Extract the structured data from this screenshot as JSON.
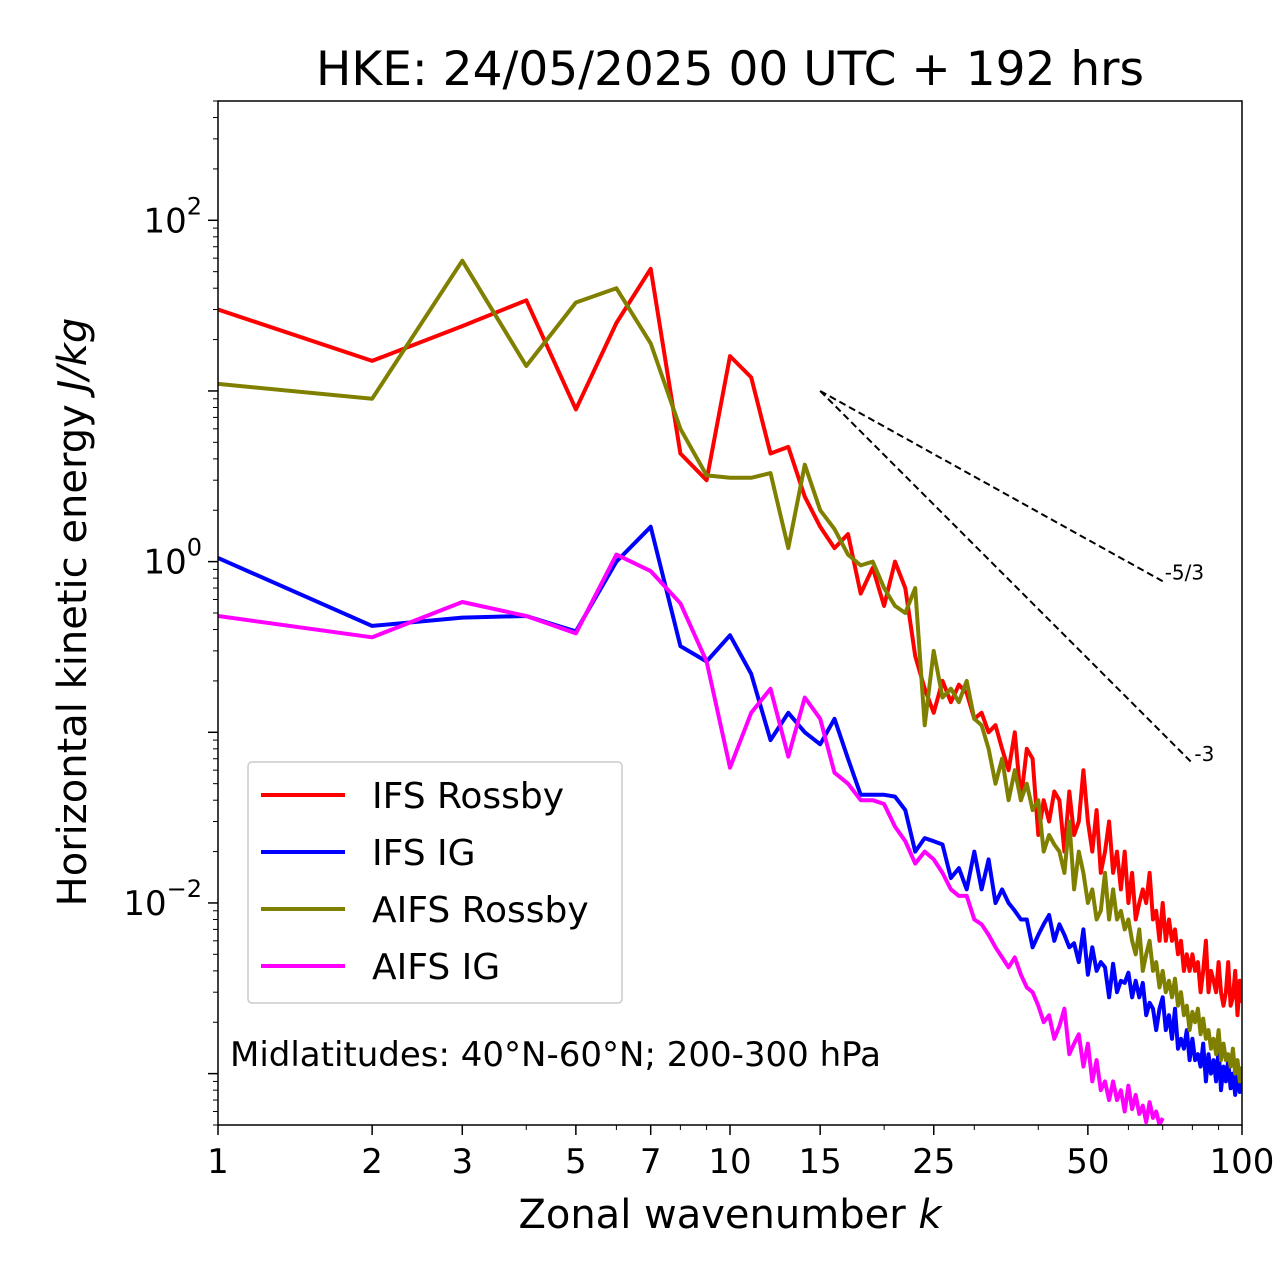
{
  "chart_data": {
    "type": "line",
    "title": "HKE: 24/05/2025 00 UTC + 192 hrs",
    "xlabel": "Zonal wavenumber",
    "xlabel_var": "k",
    "ylabel": "Horizontal kinetic energy",
    "ylabel_unit": "J/kg",
    "xscale": "log",
    "yscale": "log",
    "xlim": [
      1,
      100
    ],
    "ylim": [
      0.0005,
      500
    ],
    "xticks": [
      {
        "value": 1,
        "label": "1"
      },
      {
        "value": 2,
        "label": "2"
      },
      {
        "value": 3,
        "label": "3"
      },
      {
        "value": 5,
        "label": "5"
      },
      {
        "value": 7,
        "label": "7"
      },
      {
        "value": 10,
        "label": "10"
      },
      {
        "value": 15,
        "label": "15"
      },
      {
        "value": 25,
        "label": "25"
      },
      {
        "value": 50,
        "label": "50"
      },
      {
        "value": 100,
        "label": "100"
      }
    ],
    "yticks": [
      {
        "value": 100,
        "base": "10",
        "exp": "2"
      },
      {
        "value": 1,
        "base": "10",
        "exp": "0"
      },
      {
        "value": 0.01,
        "base": "10",
        "exp": "−2"
      }
    ],
    "legend_position": "lower-left",
    "annotation": "Midlatitudes: 40°N-60°N; 200-300 hPa",
    "reference_slopes": [
      {
        "label": "-5/3",
        "slope": -1.6667,
        "x": [
          15,
          70
        ],
        "y0": 10
      },
      {
        "label": "-3",
        "slope": -3,
        "x": [
          15,
          80
        ],
        "y0": 10
      }
    ],
    "series": [
      {
        "name": "IFS Rossby",
        "color": "#ff0000",
        "x": [
          1,
          2,
          3,
          4,
          5,
          6,
          7,
          8,
          9,
          10,
          11,
          12,
          13,
          14,
          15,
          16,
          17,
          18,
          19,
          20,
          21,
          22,
          23,
          24,
          25,
          26,
          27,
          28,
          29,
          30,
          31,
          32,
          33,
          34,
          35,
          36,
          37,
          38,
          39,
          40,
          41,
          42,
          43,
          44,
          45,
          46,
          47,
          48,
          49,
          50,
          51,
          52,
          53,
          54,
          55,
          56,
          57,
          58,
          59,
          60,
          61,
          62,
          63,
          64,
          65,
          66,
          67,
          68,
          69,
          70,
          71,
          72,
          73,
          74,
          75,
          76,
          77,
          78,
          79,
          80,
          81,
          82,
          83,
          84,
          85,
          86,
          87,
          88,
          89,
          90,
          91,
          92,
          93,
          94,
          95,
          96,
          97,
          98,
          99,
          100
        ],
        "y": [
          30,
          15,
          24,
          34,
          7.8,
          25,
          52,
          4.3,
          3,
          16,
          12,
          4.3,
          4.7,
          2.4,
          1.6,
          1.2,
          1.45,
          0.65,
          0.92,
          0.55,
          1.0,
          0.7,
          0.28,
          0.18,
          0.13,
          0.2,
          0.15,
          0.19,
          0.17,
          0.12,
          0.13,
          0.1,
          0.11,
          0.08,
          0.06,
          0.1,
          0.04,
          0.08,
          0.07,
          0.025,
          0.04,
          0.03,
          0.045,
          0.04,
          0.02,
          0.045,
          0.025,
          0.03,
          0.06,
          0.03,
          0.02,
          0.035,
          0.015,
          0.02,
          0.03,
          0.015,
          0.02,
          0.012,
          0.02,
          0.01,
          0.015,
          0.008,
          0.01,
          0.012,
          0.01,
          0.015,
          0.008,
          0.009,
          0.006,
          0.01,
          0.006,
          0.008,
          0.006,
          0.007,
          0.005,
          0.006,
          0.004,
          0.005,
          0.004,
          0.005,
          0.004,
          0.0045,
          0.003,
          0.004,
          0.006,
          0.003,
          0.004,
          0.0035,
          0.003,
          0.0045,
          0.003,
          0.0025,
          0.003,
          0.0045,
          0.0025,
          0.0028,
          0.004,
          0.0022,
          0.0035,
          0.0026
        ]
      },
      {
        "name": "IFS IG",
        "color": "#0000ff",
        "x": [
          1,
          2,
          3,
          4,
          5,
          6,
          7,
          8,
          9,
          10,
          11,
          12,
          13,
          14,
          15,
          16,
          17,
          18,
          19,
          20,
          21,
          22,
          23,
          24,
          25,
          26,
          27,
          28,
          29,
          30,
          31,
          32,
          33,
          34,
          35,
          36,
          37,
          38,
          39,
          40,
          41,
          42,
          43,
          44,
          45,
          46,
          47,
          48,
          49,
          50,
          51,
          52,
          53,
          54,
          55,
          56,
          57,
          58,
          59,
          60,
          61,
          62,
          63,
          64,
          65,
          66,
          67,
          68,
          69,
          70,
          71,
          72,
          73,
          74,
          75,
          76,
          77,
          78,
          79,
          80,
          81,
          82,
          83,
          84,
          85,
          86,
          87,
          88,
          89,
          90,
          91,
          92,
          93,
          94,
          95,
          96,
          97,
          98,
          99,
          100
        ],
        "y": [
          1.05,
          0.42,
          0.47,
          0.48,
          0.39,
          1.0,
          1.6,
          0.32,
          0.26,
          0.37,
          0.22,
          0.09,
          0.13,
          0.1,
          0.085,
          0.12,
          0.07,
          0.043,
          0.043,
          0.043,
          0.042,
          0.035,
          0.02,
          0.024,
          0.023,
          0.022,
          0.014,
          0.016,
          0.012,
          0.02,
          0.012,
          0.018,
          0.01,
          0.012,
          0.01,
          0.009,
          0.008,
          0.008,
          0.0055,
          0.0065,
          0.0075,
          0.0085,
          0.006,
          0.0075,
          0.0065,
          0.0055,
          0.0058,
          0.0045,
          0.007,
          0.0038,
          0.0055,
          0.004,
          0.0045,
          0.0042,
          0.0028,
          0.0044,
          0.003,
          0.0035,
          0.0034,
          0.0039,
          0.0028,
          0.0035,
          0.0028,
          0.0034,
          0.0022,
          0.0026,
          0.0024,
          0.0018,
          0.0024,
          0.0028,
          0.0018,
          0.0022,
          0.0016,
          0.0024,
          0.0014,
          0.0016,
          0.0014,
          0.0018,
          0.0012,
          0.0016,
          0.0012,
          0.0013,
          0.0011,
          0.0015,
          0.0009,
          0.0013,
          0.001,
          0.0012,
          0.0009,
          0.0014,
          0.0008,
          0.0011,
          0.0009,
          0.0012,
          0.00082,
          0.001,
          0.00075,
          0.001,
          0.00078,
          0.00095
        ]
      },
      {
        "name": "AIFS Rossby",
        "color": "#808000",
        "x": [
          1,
          2,
          3,
          4,
          5,
          6,
          7,
          8,
          9,
          10,
          11,
          12,
          13,
          14,
          15,
          16,
          17,
          18,
          19,
          20,
          21,
          22,
          23,
          24,
          25,
          26,
          27,
          28,
          29,
          30,
          31,
          32,
          33,
          34,
          35,
          36,
          37,
          38,
          39,
          40,
          41,
          42,
          43,
          44,
          45,
          46,
          47,
          48,
          49,
          50,
          51,
          52,
          53,
          54,
          55,
          56,
          57,
          58,
          59,
          60,
          61,
          62,
          63,
          64,
          65,
          66,
          67,
          68,
          69,
          70,
          71,
          72,
          73,
          74,
          75,
          76,
          77,
          78,
          79,
          80,
          81,
          82,
          83,
          84,
          85,
          86,
          87,
          88,
          89,
          90,
          91,
          92,
          93,
          94,
          95,
          96,
          97,
          98,
          99,
          100
        ],
        "y": [
          11,
          9,
          58,
          14,
          33,
          40,
          19,
          6,
          3.2,
          3.1,
          3.1,
          3.3,
          1.2,
          3.7,
          2.0,
          1.55,
          1.1,
          0.95,
          1.0,
          0.7,
          0.55,
          0.5,
          0.7,
          0.11,
          0.3,
          0.16,
          0.18,
          0.15,
          0.2,
          0.12,
          0.11,
          0.08,
          0.05,
          0.07,
          0.04,
          0.06,
          0.04,
          0.05,
          0.035,
          0.04,
          0.02,
          0.025,
          0.022,
          0.02,
          0.015,
          0.03,
          0.012,
          0.02,
          0.015,
          0.01,
          0.012,
          0.008,
          0.009,
          0.015,
          0.008,
          0.012,
          0.008,
          0.009,
          0.007,
          0.008,
          0.006,
          0.005,
          0.007,
          0.004,
          0.005,
          0.006,
          0.004,
          0.0045,
          0.0032,
          0.004,
          0.003,
          0.0035,
          0.0028,
          0.0036,
          0.0025,
          0.003,
          0.0022,
          0.0025,
          0.0018,
          0.0023,
          0.002,
          0.0024,
          0.0017,
          0.0021,
          0.0016,
          0.0018,
          0.0014,
          0.0016,
          0.0013,
          0.0018,
          0.0012,
          0.0015,
          0.0012,
          0.0013,
          0.0011,
          0.0014,
          0.001,
          0.0012,
          0.0009,
          0.0011
        ]
      },
      {
        "name": "AIFS IG",
        "color": "#ff00ff",
        "x": [
          1,
          2,
          3,
          4,
          5,
          6,
          7,
          8,
          9,
          10,
          11,
          12,
          13,
          14,
          15,
          16,
          17,
          18,
          19,
          20,
          21,
          22,
          23,
          24,
          25,
          26,
          27,
          28,
          29,
          30,
          31,
          32,
          33,
          34,
          35,
          36,
          37,
          38,
          39,
          40,
          41,
          42,
          43,
          44,
          45,
          46,
          47,
          48,
          49,
          50,
          51,
          52,
          53,
          54,
          55,
          56,
          57,
          58,
          59,
          60,
          61,
          62,
          63,
          64,
          65,
          66,
          67,
          68,
          69,
          70
        ],
        "y": [
          0.48,
          0.36,
          0.58,
          0.48,
          0.38,
          1.1,
          0.88,
          0.57,
          0.26,
          0.062,
          0.13,
          0.18,
          0.072,
          0.16,
          0.12,
          0.058,
          0.05,
          0.04,
          0.04,
          0.038,
          0.028,
          0.023,
          0.017,
          0.02,
          0.018,
          0.015,
          0.012,
          0.011,
          0.011,
          0.008,
          0.0075,
          0.0065,
          0.0055,
          0.0048,
          0.0042,
          0.0048,
          0.0038,
          0.0032,
          0.003,
          0.0025,
          0.002,
          0.0022,
          0.0016,
          0.0019,
          0.0024,
          0.0013,
          0.0015,
          0.0017,
          0.0011,
          0.0015,
          0.0009,
          0.0012,
          0.0008,
          0.0009,
          0.0007,
          0.0009,
          0.0007,
          0.0008,
          0.0006,
          0.00085,
          0.00062,
          0.00075,
          0.00058,
          0.00065,
          0.00052,
          0.00068,
          0.00055,
          0.0006,
          0.0005,
          0.00055
        ]
      }
    ]
  }
}
